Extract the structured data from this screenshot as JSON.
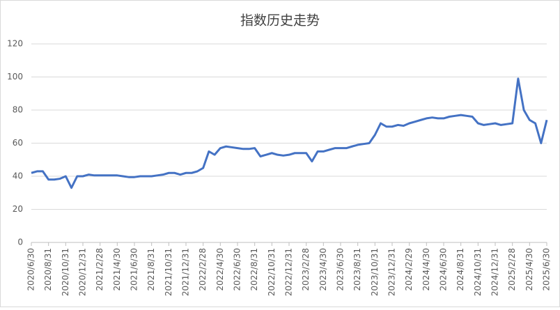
{
  "chart_data": {
    "type": "line",
    "title": "指数历史走势",
    "categories": [
      "2020/6/30",
      null,
      null,
      "2020/8/31",
      null,
      null,
      "2020/10/31",
      null,
      null,
      "2020/12/31",
      null,
      null,
      "2021/2/28",
      null,
      null,
      "2021/4/30",
      null,
      null,
      "2021/6/30",
      null,
      null,
      "2021/8/31",
      null,
      null,
      "2021/10/31",
      null,
      null,
      "2021/12/31",
      null,
      null,
      "2022/2/28",
      null,
      null,
      "2022/4/30",
      null,
      null,
      "2022/6/30",
      null,
      null,
      "2022/8/31",
      null,
      null,
      "2022/10/31",
      null,
      null,
      "2022/12/31",
      null,
      null,
      "2023/2/28",
      null,
      null,
      "2023/4/30",
      null,
      null,
      "2023/6/30",
      null,
      null,
      "2023/8/31",
      null,
      null,
      "2023/10/31",
      null,
      null,
      "2023/12/31",
      null,
      null,
      "2024/2/29",
      null,
      null,
      "2024/4/30",
      null,
      null,
      "2024/6/30",
      null,
      null,
      "2024/8/31",
      null,
      null,
      "2024/10/31",
      null,
      null,
      "2024/12/31",
      null,
      null,
      "2025/2/28",
      null,
      null,
      "2025/4/30",
      null,
      null,
      "2025/6/30"
    ],
    "series": [
      {
        "color": "#4472c4",
        "values": [
          42,
          43,
          43,
          38,
          38,
          38.5,
          40,
          33,
          40,
          40,
          41,
          40.5,
          40.5,
          40.5,
          40.5,
          40.5,
          40,
          39.5,
          39.5,
          40,
          40,
          40,
          40.5,
          41,
          42,
          42,
          41,
          42,
          42,
          43,
          45,
          55,
          53,
          57,
          58,
          57.5,
          57,
          56.5,
          56.5,
          57,
          52,
          53,
          54,
          53,
          52.5,
          53,
          54,
          54,
          54,
          49,
          55,
          55,
          56,
          57,
          57,
          57,
          58,
          59,
          59.5,
          60,
          65,
          72,
          70,
          70,
          71,
          70.5,
          72,
          73,
          74,
          75,
          75.5,
          75,
          75,
          76,
          76.5,
          77,
          76.5,
          76,
          72,
          71,
          71.5,
          72,
          71,
          71.5,
          72,
          99,
          80,
          74,
          72,
          60,
          74
        ]
      }
    ],
    "ylim": [
      0,
      120
    ],
    "yticks": [
      0,
      20,
      40,
      60,
      80,
      100,
      120
    ],
    "grid": true
  }
}
